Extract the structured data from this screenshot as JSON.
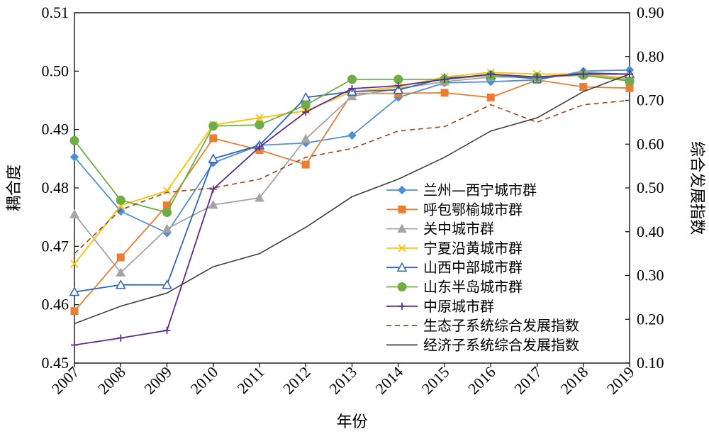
{
  "chart_data": {
    "type": "line",
    "title": "",
    "xlabel": "年份",
    "ylabel_left": "耦合度",
    "ylabel_right": "综合发展指数",
    "x": [
      "2007",
      "2008",
      "2009",
      "2010",
      "2011",
      "2012",
      "2013",
      "2014",
      "2015",
      "2016",
      "2017",
      "2018",
      "2019"
    ],
    "ylim_left": [
      0.45,
      0.51
    ],
    "yticks_left": [
      "0.45",
      "0.46",
      "0.47",
      "0.48",
      "0.49",
      "0.50",
      "0.51"
    ],
    "ylim_right": [
      0.1,
      0.9
    ],
    "yticks_right": [
      "0.10",
      "0.20",
      "0.30",
      "0.40",
      "0.50",
      "0.60",
      "0.70",
      "0.80",
      "0.90"
    ],
    "legend_position": "center-right",
    "series": [
      {
        "name": "兰州—西宁城市群",
        "axis": "left",
        "color": "#4f8fd6",
        "marker": "diamond",
        "dash": "solid",
        "values": [
          0.4853,
          0.476,
          0.4723,
          0.4843,
          0.4873,
          0.4877,
          0.489,
          0.4955,
          0.498,
          0.4982,
          0.4985,
          0.5,
          0.5002
        ]
      },
      {
        "name": "呼包鄂榆城市群",
        "axis": "left",
        "color": "#ed7d31",
        "marker": "square",
        "dash": "solid",
        "values": [
          0.4589,
          0.4681,
          0.477,
          0.4885,
          0.4865,
          0.484,
          0.4962,
          0.4962,
          0.4963,
          0.4955,
          0.4985,
          0.4973,
          0.4971
        ]
      },
      {
        "name": "关中城市群",
        "axis": "left",
        "color": "#a5a5a5",
        "marker": "triangle",
        "dash": "solid",
        "values": [
          0.4755,
          0.4655,
          0.473,
          0.4771,
          0.4783,
          0.4884,
          0.4957,
          0.497,
          0.4982,
          0.499,
          0.499,
          0.4995,
          0.4985
        ]
      },
      {
        "name": "宁夏沿黄城市群",
        "axis": "left",
        "color": "#ffc000",
        "marker": "x",
        "dash": "solid",
        "values": [
          0.467,
          0.477,
          0.4795,
          0.4908,
          0.492,
          0.4932,
          0.4965,
          0.4973,
          0.499,
          0.4998,
          0.4995,
          0.4995,
          0.4988
        ]
      },
      {
        "name": "山西中部城市群",
        "axis": "left",
        "color": "#2e64b5",
        "marker": "triangle-open",
        "dash": "solid",
        "values": [
          0.4622,
          0.4634,
          0.4634,
          0.485,
          0.4873,
          0.4955,
          0.4965,
          0.4968,
          0.4988,
          0.4993,
          0.4987,
          0.4997,
          0.4995
        ]
      },
      {
        "name": "山东半岛城市群",
        "axis": "left",
        "color": "#70ad47",
        "marker": "circle",
        "dash": "solid",
        "values": [
          0.4881,
          0.4779,
          0.4758,
          0.4906,
          0.4908,
          0.4942,
          0.4986,
          0.4986,
          0.4986,
          0.4993,
          0.499,
          0.4993,
          0.4983
        ]
      },
      {
        "name": "中原城市群",
        "axis": "left",
        "color": "#5b2c8d",
        "marker": "plus",
        "dash": "solid",
        "values": [
          0.4531,
          0.4543,
          0.4556,
          0.4798,
          0.487,
          0.493,
          0.497,
          0.4975,
          0.4986,
          0.4995,
          0.499,
          0.4995,
          0.4995
        ]
      },
      {
        "name": "生态子系统综合发展指数",
        "axis": "right",
        "color": "#a0441c",
        "marker": "none",
        "dash": "dashed",
        "values": [
          0.35,
          0.45,
          0.49,
          0.5,
          0.52,
          0.57,
          0.59,
          0.63,
          0.64,
          0.69,
          0.65,
          0.69,
          0.7
        ]
      },
      {
        "name": "经济子系统综合发展指数",
        "axis": "right",
        "color": "#404040",
        "marker": "none",
        "dash": "solid",
        "values": [
          0.19,
          0.23,
          0.26,
          0.32,
          0.35,
          0.41,
          0.48,
          0.52,
          0.57,
          0.63,
          0.66,
          0.72,
          0.76
        ]
      }
    ]
  }
}
